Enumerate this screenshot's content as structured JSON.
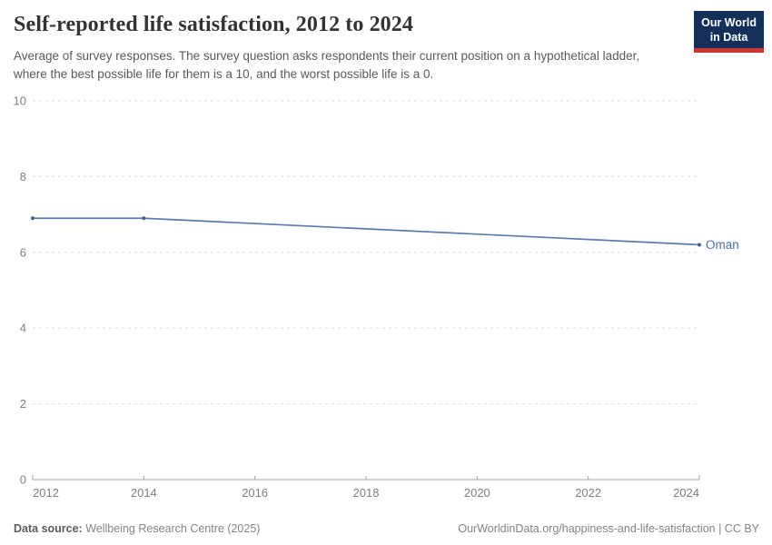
{
  "header": {
    "title": "Self-reported life satisfaction, 2012 to 2024",
    "subtitle": "Average of survey responses. The survey question asks respondents their current position on a hypothetical ladder, where the best possible life for them is a 10, and the worst possible life is a 0.",
    "logo": {
      "line1": "Our World",
      "line2": "in Data",
      "bg_color": "#12305a",
      "accent_color": "#d0342c"
    }
  },
  "chart_data": {
    "type": "line",
    "title": "Self-reported life satisfaction, 2012 to 2024",
    "x": [
      2012,
      2014,
      2024
    ],
    "series": [
      {
        "name": "Oman",
        "values": [
          6.9,
          6.9,
          6.2
        ]
      }
    ],
    "x_ticks": [
      "2012",
      "2014",
      "2016",
      "2018",
      "2020",
      "2022",
      "2024"
    ],
    "y_ticks": [
      0,
      2,
      4,
      6,
      8,
      10
    ],
    "xlim": [
      2012,
      2024
    ],
    "ylim": [
      0,
      10
    ],
    "grid": "horizontal-dashed",
    "legend_position": "end-of-line",
    "end_label": "Oman",
    "colors": {
      "line": "#5b7ab0",
      "marker": "#44608f",
      "label": "#4d6fb0",
      "grid": "#dddddd",
      "axis": "#a0a0a0",
      "tick_text": "#808080"
    }
  },
  "footer": {
    "source_label": "Data source:",
    "source_text": "Wellbeing Research Centre (2025)",
    "link_text": "OurWorldinData.org/happiness-and-life-satisfaction | CC BY"
  }
}
